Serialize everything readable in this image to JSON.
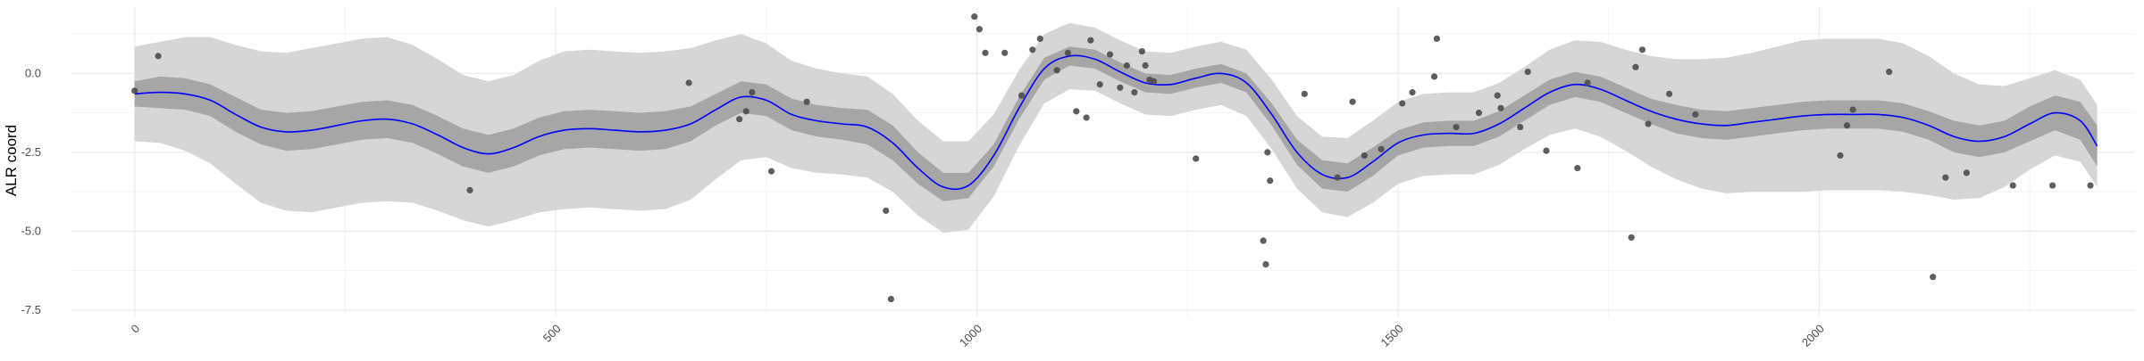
{
  "chart_data": {
    "type": "scatter",
    "title": "",
    "xlabel": "",
    "ylabel": "ALR coord",
    "xlim": [
      -75,
      2375
    ],
    "ylim": [
      -7.7,
      2.1
    ],
    "grid": true,
    "legend": "none",
    "x_ticks": [
      0,
      500,
      1000,
      1500,
      2000
    ],
    "x_tick_labels": [
      "0",
      "500",
      "1000",
      "1500",
      "2000"
    ],
    "x_tick_rotation": -45,
    "y_ticks": [
      0.0,
      -2.5,
      -5.0,
      -7.5
    ],
    "y_tick_labels": [
      "0.0",
      "-2.5",
      "-5.0",
      "-7.5"
    ],
    "colors": {
      "points": "#4d4d4d",
      "trend_line": "#0000ff",
      "inner_band": "#a6a6a6",
      "outer_band": "#d6d6d6",
      "grid_major": "#ebebeb",
      "grid_minor": "#f3f3f3"
    },
    "series": [
      {
        "type": "points",
        "x": [
          0,
          28,
          398,
          658,
          718,
          726,
          733,
          756,
          798,
          892,
          898,
          997,
          1003,
          1010,
          1033,
          1053,
          1066,
          1075,
          1095,
          1108,
          1118,
          1130,
          1135,
          1146,
          1158,
          1170,
          1178,
          1187,
          1196,
          1200,
          1205,
          1210,
          1260,
          1340,
          1343,
          1345,
          1348,
          1389,
          1428,
          1446,
          1460,
          1480,
          1505,
          1517,
          1543,
          1546,
          1569,
          1596,
          1618,
          1622,
          1645,
          1654,
          1676,
          1713,
          1725,
          1777,
          1782,
          1790,
          1797,
          1822,
          1853,
          2025,
          2033,
          2040,
          2083,
          2135,
          2150,
          2175,
          2230,
          2277,
          2322
        ],
        "y": [
          -0.55,
          0.55,
          -3.7,
          -0.3,
          -1.45,
          -1.2,
          -0.6,
          -3.1,
          -0.9,
          -4.35,
          -7.15,
          1.8,
          1.4,
          0.65,
          0.65,
          -0.7,
          0.75,
          1.1,
          0.1,
          0.65,
          -1.2,
          -1.4,
          1.05,
          -0.35,
          0.6,
          -0.45,
          0.25,
          -0.6,
          0.7,
          0.25,
          -0.2,
          -0.25,
          -2.7,
          -5.3,
          -6.05,
          -2.5,
          -3.4,
          -0.65,
          -3.3,
          -0.9,
          -2.6,
          -2.4,
          -0.95,
          -0.6,
          -0.1,
          1.1,
          -1.7,
          -1.25,
          -0.7,
          -1.1,
          -1.7,
          0.05,
          -2.45,
          -3.0,
          -0.3,
          -5.2,
          0.2,
          0.75,
          -1.6,
          -0.65,
          -1.3,
          -2.6,
          -1.65,
          -1.15,
          0.05,
          -6.45,
          -3.3,
          -3.15,
          -3.55,
          -3.55,
          -3.55
        ]
      },
      {
        "type": "smooth",
        "x": [
          0,
          30,
          60,
          90,
          120,
          150,
          180,
          210,
          240,
          270,
          300,
          330,
          360,
          390,
          420,
          450,
          480,
          510,
          540,
          570,
          600,
          630,
          660,
          690,
          720,
          750,
          780,
          810,
          840,
          870,
          900,
          930,
          960,
          990,
          1020,
          1050,
          1080,
          1110,
          1140,
          1170,
          1200,
          1230,
          1260,
          1290,
          1320,
          1350,
          1380,
          1410,
          1440,
          1470,
          1500,
          1530,
          1560,
          1590,
          1620,
          1650,
          1680,
          1710,
          1740,
          1770,
          1800,
          1830,
          1860,
          1890,
          1920,
          1950,
          1980,
          2010,
          2040,
          2070,
          2100,
          2130,
          2160,
          2190,
          2220,
          2250,
          2280,
          2310,
          2330
        ],
        "y": [
          -0.65,
          -0.6,
          -0.65,
          -0.85,
          -1.3,
          -1.7,
          -1.85,
          -1.8,
          -1.65,
          -1.5,
          -1.45,
          -1.6,
          -1.95,
          -2.35,
          -2.55,
          -2.35,
          -2.0,
          -1.8,
          -1.75,
          -1.8,
          -1.85,
          -1.8,
          -1.6,
          -1.15,
          -0.75,
          -0.85,
          -1.3,
          -1.5,
          -1.6,
          -1.7,
          -2.2,
          -3.0,
          -3.6,
          -3.55,
          -2.6,
          -1.1,
          0.15,
          0.55,
          0.45,
          0.05,
          -0.3,
          -0.35,
          -0.15,
          0.0,
          -0.3,
          -1.3,
          -2.5,
          -3.2,
          -3.3,
          -2.8,
          -2.2,
          -1.95,
          -1.9,
          -1.9,
          -1.6,
          -1.1,
          -0.6,
          -0.35,
          -0.5,
          -0.85,
          -1.2,
          -1.45,
          -1.6,
          -1.65,
          -1.55,
          -1.45,
          -1.35,
          -1.3,
          -1.3,
          -1.3,
          -1.4,
          -1.65,
          -2.0,
          -2.15,
          -2.0,
          -1.6,
          -1.25,
          -1.5,
          -2.3
        ],
        "inner_band": [
          0.4,
          0.5,
          0.5,
          0.5,
          0.55,
          0.55,
          0.6,
          0.6,
          0.6,
          0.6,
          0.6,
          0.6,
          0.6,
          0.6,
          0.6,
          0.6,
          0.6,
          0.6,
          0.6,
          0.6,
          0.6,
          0.6,
          0.55,
          0.5,
          0.5,
          0.5,
          0.5,
          0.5,
          0.5,
          0.55,
          0.55,
          0.5,
          0.45,
          0.4,
          0.35,
          0.35,
          0.35,
          0.3,
          0.3,
          0.3,
          0.3,
          0.3,
          0.3,
          0.3,
          0.3,
          0.35,
          0.4,
          0.45,
          0.45,
          0.45,
          0.4,
          0.4,
          0.4,
          0.4,
          0.4,
          0.4,
          0.4,
          0.4,
          0.4,
          0.4,
          0.4,
          0.45,
          0.45,
          0.45,
          0.45,
          0.45,
          0.45,
          0.45,
          0.45,
          0.45,
          0.45,
          0.45,
          0.5,
          0.5,
          0.5,
          0.55,
          0.55,
          0.6,
          0.65
        ],
        "outer_band": [
          1.5,
          1.6,
          1.8,
          2.0,
          2.2,
          2.4,
          2.5,
          2.6,
          2.6,
          2.6,
          2.6,
          2.5,
          2.4,
          2.3,
          2.3,
          2.3,
          2.4,
          2.5,
          2.5,
          2.5,
          2.5,
          2.5,
          2.4,
          2.2,
          2.0,
          1.8,
          1.7,
          1.65,
          1.6,
          1.6,
          1.55,
          1.5,
          1.45,
          1.4,
          1.3,
          1.2,
          1.1,
          1.05,
          1.0,
          1.0,
          1.0,
          1.0,
          1.0,
          1.0,
          1.05,
          1.1,
          1.15,
          1.2,
          1.25,
          1.3,
          1.3,
          1.3,
          1.3,
          1.3,
          1.3,
          1.3,
          1.35,
          1.4,
          1.5,
          1.6,
          1.75,
          1.9,
          2.05,
          2.15,
          2.2,
          2.3,
          2.4,
          2.4,
          2.4,
          2.4,
          2.35,
          2.2,
          2.0,
          1.8,
          1.6,
          1.45,
          1.35,
          1.3,
          1.3
        ]
      }
    ]
  }
}
